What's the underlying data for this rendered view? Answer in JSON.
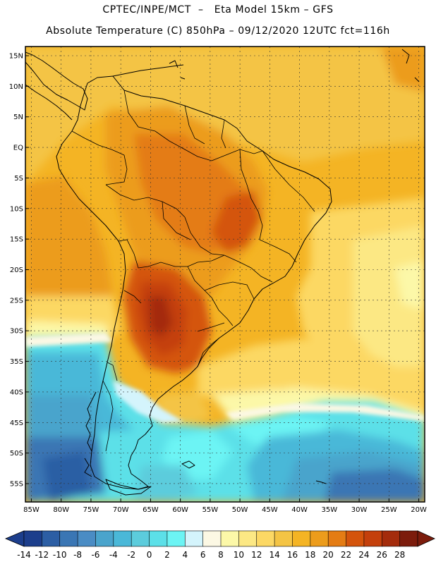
{
  "title": {
    "line1": "CPTEC/INPE/MCT  –   Eta Model 15km – GFS",
    "line2": "Absolute Temperature (C) 850hPa – 09/12/2020 12UTC fct=116h"
  },
  "map": {
    "lon_range": [
      -86,
      -19
    ],
    "lat_range": [
      -58,
      16.5
    ],
    "lat_ticks": [
      "15N",
      "10N",
      "5N",
      "EQ",
      "5S",
      "10S",
      "15S",
      "20S",
      "25S",
      "30S",
      "35S",
      "40S",
      "45S",
      "50S",
      "55S"
    ],
    "lat_values": [
      15,
      10,
      5,
      0,
      -5,
      -10,
      -15,
      -20,
      -25,
      -30,
      -35,
      -40,
      -45,
      -50,
      -55
    ],
    "lon_ticks": [
      "85W",
      "80W",
      "75W",
      "70W",
      "65W",
      "60W",
      "55W",
      "50W",
      "45W",
      "40W",
      "35W",
      "30W",
      "25W",
      "20W"
    ],
    "lon_values": [
      -85,
      -80,
      -75,
      -70,
      -65,
      -60,
      -55,
      -50,
      -45,
      -40,
      -35,
      -30,
      -25,
      -20
    ]
  },
  "colorbar": {
    "labels": [
      "-14",
      "-12",
      "-10",
      "-8",
      "-6",
      "-4",
      "-2",
      "0",
      "2",
      "4",
      "6",
      "8",
      "10",
      "12",
      "14",
      "16",
      "18",
      "20",
      "22",
      "24",
      "26",
      "28"
    ],
    "colors": [
      "#1c3e8c",
      "#2c5ea4",
      "#3a76b4",
      "#4a8cc4",
      "#4aa4cc",
      "#4ab8d8",
      "#5cccdc",
      "#5ce0e8",
      "#6cf4f4",
      "#d4f4fc",
      "#fcf8e4",
      "#fcf8a8",
      "#fce884",
      "#fcd864",
      "#f4c444",
      "#f4b424",
      "#ec9c1c",
      "#e47c14",
      "#d4540c",
      "#c4400c",
      "#a42c0c",
      "#7c1c0c"
    ],
    "low_color": "#1c3e8c",
    "high_color": "#7c1c0c"
  }
}
